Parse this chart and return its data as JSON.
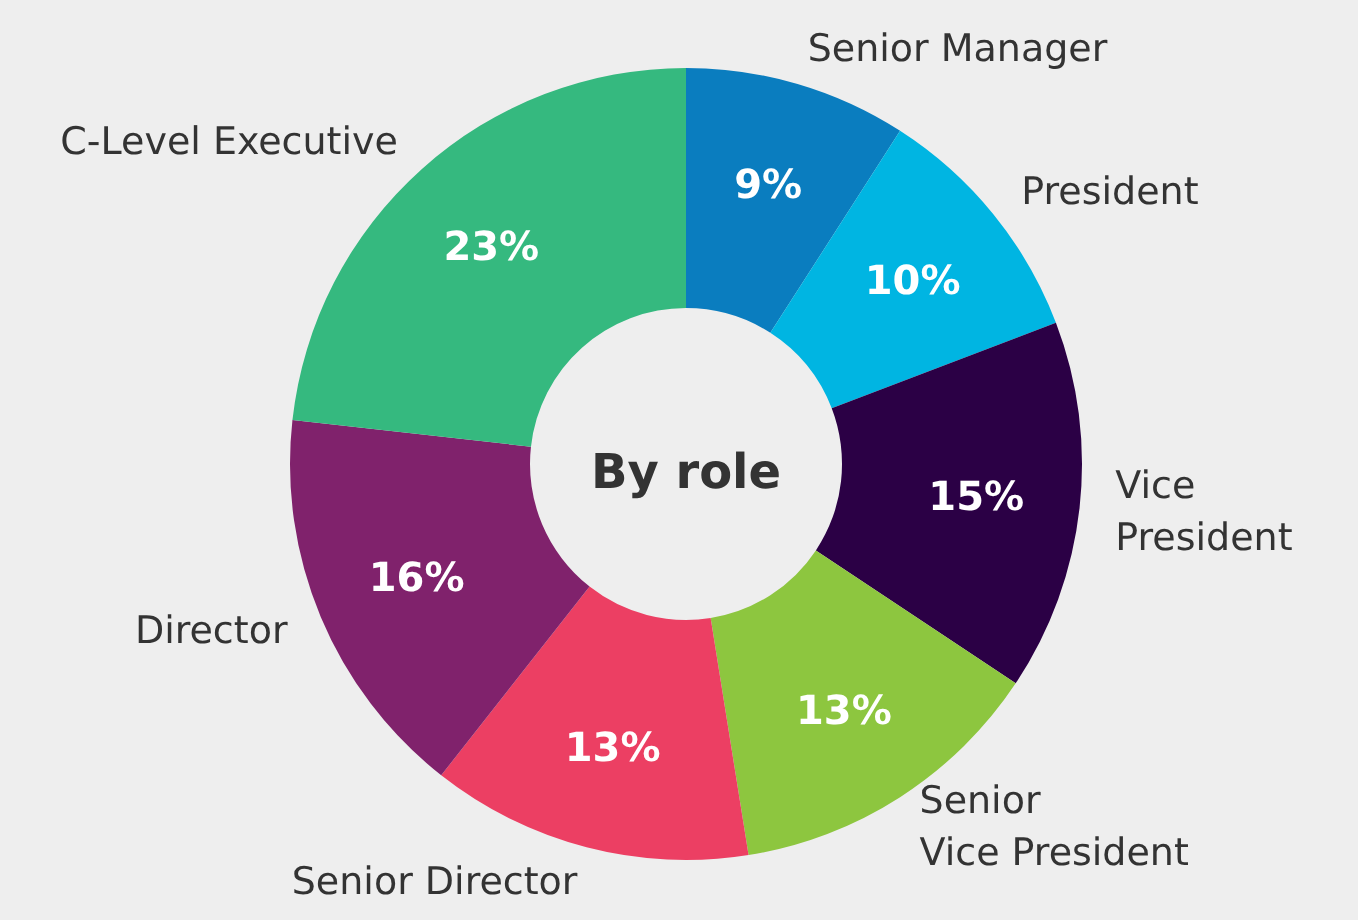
{
  "chart_data": {
    "type": "donut",
    "title": "By role",
    "categories": [
      "Senior Manager",
      "President",
      "Vice\nPresident",
      "Senior\nVice President",
      "Senior Director",
      "Director",
      "C-Level Executive"
    ],
    "values": [
      9,
      10,
      15,
      13,
      13,
      16,
      23
    ],
    "value_labels": [
      "9%",
      "10%",
      "15%",
      "13%",
      "13%",
      "16%",
      "23%"
    ],
    "colors": [
      "#0a7dbf",
      "#00b5e2",
      "#2b0045",
      "#8dc63f",
      "#ec3f63",
      "#80226c",
      "#35b97f"
    ],
    "legend": false
  }
}
